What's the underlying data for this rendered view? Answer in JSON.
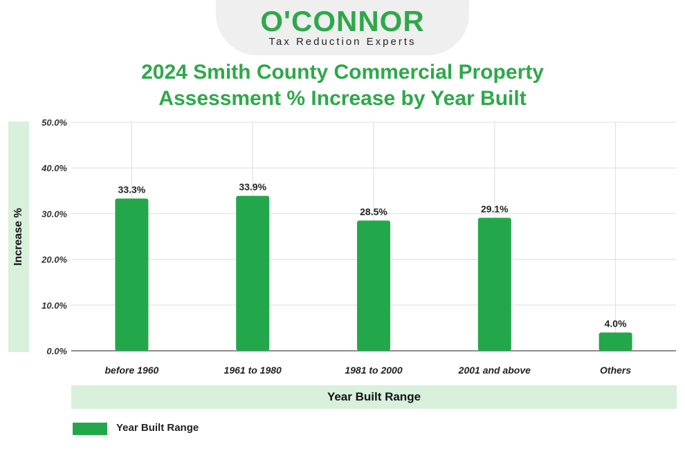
{
  "brand": {
    "name": "O'CONNOR",
    "tagline": "Tax Reduction Experts"
  },
  "chart_data": {
    "type": "bar",
    "title_lines": [
      "2024 Smith County Commercial Property",
      "Assessment % Increase by Year Built"
    ],
    "categories": [
      "before 1960",
      "1961 to 1980",
      "1981 to 2000",
      "2001 and above",
      "Others"
    ],
    "series": [
      {
        "name": "Year Built Range",
        "values": [
          33.3,
          33.9,
          28.5,
          29.1,
          4.0
        ]
      }
    ],
    "data_labels": [
      "33.3%",
      "33.9%",
      "28.5%",
      "29.1%",
      "4.0%"
    ],
    "xlabel": "Year Built Range",
    "ylabel": "Increase %",
    "ylim": [
      0,
      50
    ],
    "yticks": [
      0,
      10,
      20,
      30,
      40,
      50
    ],
    "ytick_labels": [
      "0.0%",
      "10.0%",
      "20.0%",
      "30.0%",
      "40.0%",
      "50.0%"
    ],
    "grid": true,
    "legend_position": "bottom-left",
    "colors": {
      "bar": "#22a84a",
      "title": "#2ea84a",
      "band": "#d8f0dc",
      "grid": "#dddddd"
    }
  }
}
